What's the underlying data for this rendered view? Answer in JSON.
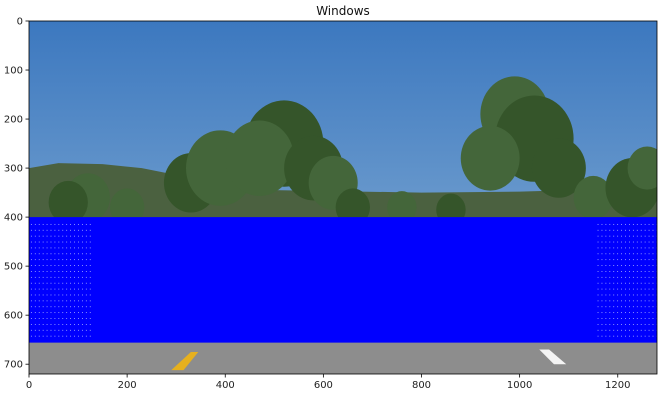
{
  "chart_data": {
    "type": "image",
    "title": "Windows",
    "xlabel": "",
    "ylabel": "",
    "xlim": [
      0,
      1280
    ],
    "ylim": [
      720,
      0
    ],
    "xticks": [
      0,
      200,
      400,
      600,
      800,
      1000,
      1200
    ],
    "yticks": [
      0,
      100,
      200,
      300,
      400,
      500,
      600,
      700
    ],
    "windows_region": {
      "x": [
        0,
        1280
      ],
      "y": [
        400,
        656
      ]
    },
    "colors": {
      "windows": "#0000ff",
      "sky": "#4a87c8",
      "trees": "#3a5a2a",
      "road": "#8d8d8d",
      "lane_yellow": "#e6b01e",
      "lane_white": "#f4f4f4"
    }
  }
}
